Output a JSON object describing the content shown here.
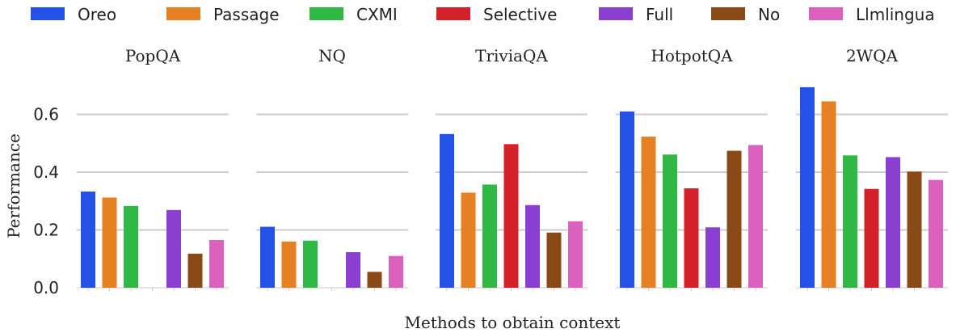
{
  "chart_data": {
    "type": "bar",
    "xlabel": "Methods to obtain context",
    "ylabel": "Performance",
    "ylim": [
      0,
      0.7
    ],
    "yticks": [
      "0.0",
      "0.2",
      "0.4",
      "0.6"
    ],
    "grid": true,
    "legend_position": "top",
    "series": [
      {
        "name": "Oreo",
        "color": "#2451e6"
      },
      {
        "name": "Passage",
        "color": "#e58122"
      },
      {
        "name": "CXMI",
        "color": "#2fb944"
      },
      {
        "name": "Selective",
        "color": "#d42029"
      },
      {
        "name": "Full",
        "color": "#8a3fd1"
      },
      {
        "name": "No",
        "color": "#8a4a17"
      },
      {
        "name": "Llmlingua",
        "color": "#dc61be"
      }
    ],
    "panels": [
      {
        "title": "PopQA",
        "values": [
          0.333,
          0.312,
          0.283,
          null,
          0.269,
          0.118,
          0.165
        ]
      },
      {
        "title": "NQ",
        "values": [
          0.211,
          0.16,
          0.163,
          null,
          0.123,
          0.055,
          0.11
        ]
      },
      {
        "title": "TriviaQA",
        "values": [
          0.532,
          0.329,
          0.357,
          0.497,
          0.286,
          0.191,
          0.23
        ]
      },
      {
        "title": "HotpotQA",
        "values": [
          0.61,
          0.523,
          0.461,
          0.344,
          0.209,
          0.474,
          0.494
        ]
      },
      {
        "title": "2WQA",
        "values": [
          0.694,
          0.645,
          0.458,
          0.342,
          0.452,
          0.402,
          0.373
        ]
      }
    ]
  }
}
